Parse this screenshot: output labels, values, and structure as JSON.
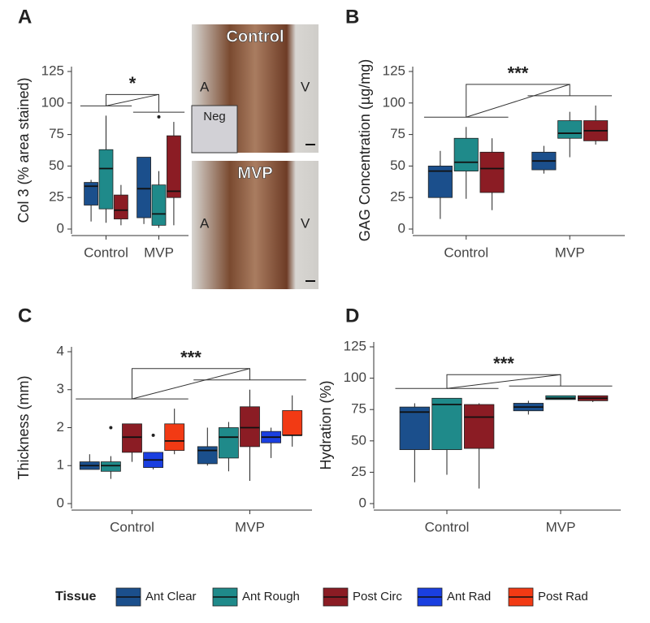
{
  "chart_data": [
    {
      "type": "box",
      "panel_label": "A",
      "y_label": "Col 3 (% area stained)",
      "categories": [
        "Control",
        "MVP"
      ],
      "ylim": [
        0,
        125
      ],
      "yticks": [
        0,
        25,
        50,
        75,
        100,
        125
      ],
      "significance": "*",
      "series": [
        {
          "name": "Ant Clear",
          "color": "#1b4f8c",
          "min": [
            6,
            4
          ],
          "q1": [
            19,
            9
          ],
          "median": [
            34,
            32
          ],
          "q3": [
            37,
            57
          ],
          "max": [
            39,
            57
          ]
        },
        {
          "name": "Ant Rough",
          "color": "#1f8a8a",
          "min": [
            5,
            1
          ],
          "q1": [
            16,
            3
          ],
          "median": [
            48,
            12
          ],
          "q3": [
            63,
            35
          ],
          "max": [
            90,
            46
          ],
          "outliers": [
            {
              "category": 1,
              "value": 89
            }
          ]
        },
        {
          "name": "Post Circ",
          "color": "#8b1c24",
          "min": [
            3,
            3
          ],
          "q1": [
            8,
            25
          ],
          "median": [
            15,
            30
          ],
          "q3": [
            27,
            74
          ],
          "max": [
            35,
            85
          ]
        }
      ],
      "inset_images": [
        {
          "title": "Control",
          "labels": [
            "A",
            "V",
            "Neg"
          ]
        },
        {
          "title": "MVP",
          "labels": [
            "A",
            "V"
          ]
        }
      ]
    },
    {
      "type": "box",
      "panel_label": "B",
      "y_label": "GAG Concentration (µg/mg)",
      "categories": [
        "Control",
        "MVP"
      ],
      "ylim": [
        0,
        125
      ],
      "yticks": [
        0,
        25,
        50,
        75,
        100,
        125
      ],
      "significance": "***",
      "series": [
        {
          "name": "Ant Clear",
          "color": "#1b4f8c",
          "min": [
            8,
            44
          ],
          "q1": [
            25,
            47
          ],
          "median": [
            46,
            54
          ],
          "q3": [
            50,
            61
          ],
          "max": [
            62,
            66
          ]
        },
        {
          "name": "Ant Rough",
          "color": "#1f8a8a",
          "min": [
            24,
            57
          ],
          "q1": [
            46,
            72
          ],
          "median": [
            53,
            76
          ],
          "q3": [
            72,
            86
          ],
          "max": [
            81,
            93
          ]
        },
        {
          "name": "Post Circ",
          "color": "#8b1c24",
          "min": [
            15,
            67
          ],
          "q1": [
            29,
            70
          ],
          "median": [
            48,
            78
          ],
          "q3": [
            61,
            86
          ],
          "max": [
            72,
            98
          ]
        }
      ]
    },
    {
      "type": "box",
      "panel_label": "C",
      "y_label": "Thickness (mm)",
      "categories": [
        "Control",
        "MVP"
      ],
      "ylim": [
        0,
        4
      ],
      "yticks": [
        0,
        1,
        2,
        3,
        4
      ],
      "significance": "***",
      "legend": {
        "title": "Tissue",
        "position": "bottom"
      },
      "series": [
        {
          "name": "Ant Clear",
          "color": "#1b4f8c",
          "min": [
            0.9,
            1.0
          ],
          "q1": [
            0.9,
            1.05
          ],
          "median": [
            1.0,
            1.4
          ],
          "q3": [
            1.1,
            1.5
          ],
          "max": [
            1.3,
            2.0
          ]
        },
        {
          "name": "Ant Rough",
          "color": "#1f8a8a",
          "min": [
            0.65,
            0.85
          ],
          "q1": [
            0.85,
            1.2
          ],
          "median": [
            1.0,
            1.75
          ],
          "q3": [
            1.1,
            2.0
          ],
          "max": [
            1.25,
            2.15
          ],
          "outliers": [
            {
              "category": 0,
              "value": 2.0
            }
          ]
        },
        {
          "name": "Post Circ",
          "color": "#8b1c24",
          "min": [
            1.1,
            0.6
          ],
          "q1": [
            1.35,
            1.5
          ],
          "median": [
            1.75,
            2.0
          ],
          "q3": [
            2.1,
            2.55
          ],
          "max": [
            2.1,
            3.0
          ]
        },
        {
          "name": "Ant Rad",
          "color": "#1a3fe0",
          "min": [
            0.9,
            1.2
          ],
          "q1": [
            0.95,
            1.6
          ],
          "median": [
            1.15,
            1.75
          ],
          "q3": [
            1.35,
            1.9
          ],
          "max": [
            1.35,
            2.0
          ],
          "outliers": [
            {
              "category": 0,
              "value": 1.8
            }
          ]
        },
        {
          "name": "Post Rad",
          "color": "#f23a14",
          "min": [
            1.3,
            1.5
          ],
          "q1": [
            1.4,
            1.8
          ],
          "median": [
            1.65,
            1.8
          ],
          "q3": [
            2.1,
            2.45
          ],
          "max": [
            2.5,
            2.85
          ]
        }
      ]
    },
    {
      "type": "box",
      "panel_label": "D",
      "y_label": "Hydration (%)",
      "categories": [
        "Control",
        "MVP"
      ],
      "ylim": [
        0,
        125
      ],
      "yticks": [
        0,
        25,
        50,
        75,
        100,
        125
      ],
      "significance": "***",
      "series": [
        {
          "name": "Ant Clear",
          "color": "#1b4f8c",
          "min": [
            17,
            71
          ],
          "q1": [
            43,
            74
          ],
          "median": [
            73,
            77
          ],
          "q3": [
            77,
            80
          ],
          "max": [
            80,
            82
          ]
        },
        {
          "name": "Ant Rough",
          "color": "#1f8a8a",
          "min": [
            23,
            83
          ],
          "q1": [
            43,
            83
          ],
          "median": [
            79,
            84
          ],
          "q3": [
            84,
            86
          ],
          "max": [
            84,
            86
          ]
        },
        {
          "name": "Post Circ",
          "color": "#8b1c24",
          "min": [
            12,
            81
          ],
          "q1": [
            44,
            82
          ],
          "median": [
            69,
            84
          ],
          "q3": [
            79,
            86
          ],
          "max": [
            80,
            86
          ]
        }
      ]
    }
  ]
}
